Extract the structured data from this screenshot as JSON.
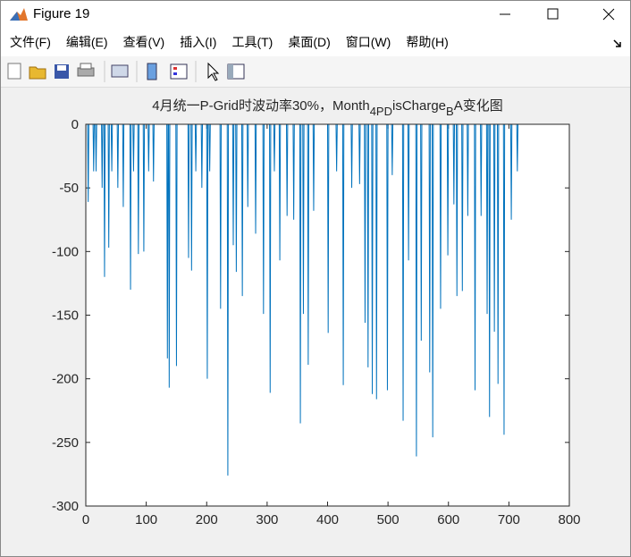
{
  "window": {
    "title": "Figure 19"
  },
  "menu": [
    "文件(F)",
    "编辑(E)",
    "查看(V)",
    "插入(I)",
    "工具(T)",
    "桌面(D)",
    "窗口(W)",
    "帮助(H)"
  ],
  "chart_data": {
    "type": "line",
    "title": [
      "4月统一P-Grid时波动率30%，Month",
      "4PD",
      "isCharge",
      "B",
      "A变化图"
    ],
    "xlim": [
      0,
      800
    ],
    "xticks": [
      0,
      100,
      200,
      300,
      400,
      500,
      600,
      700,
      800
    ],
    "ylim": [
      -300,
      0
    ],
    "yticks": [
      0,
      -50,
      -100,
      -150,
      -200,
      -250,
      -300
    ],
    "series": [
      {
        "color": "#0072bd",
        "x": [
          1,
          3,
          4,
          5,
          12,
          13,
          14,
          16,
          17,
          18,
          26,
          27,
          28,
          30,
          31,
          32,
          37,
          38,
          39,
          42,
          43,
          44,
          52,
          53,
          54,
          61,
          62,
          63,
          73,
          74,
          75,
          78,
          79,
          80,
          86,
          87,
          88,
          95,
          96,
          97,
          103,
          104,
          105,
          111,
          112,
          113,
          134,
          135,
          136,
          137,
          138,
          139,
          149,
          150,
          151,
          169,
          170,
          171,
          174,
          175,
          176,
          181,
          182,
          183,
          191,
          192,
          193,
          200,
          201,
          202,
          204,
          205,
          206,
          222,
          223,
          224,
          234,
          235,
          236,
          243,
          244,
          245,
          248,
          249,
          250,
          258,
          259,
          260,
          267,
          268,
          269,
          280,
          281,
          282,
          293,
          294,
          295,
          304,
          305,
          306,
          311,
          312,
          313,
          320,
          321,
          322,
          332,
          333,
          334,
          343,
          344,
          345,
          354,
          355,
          356,
          359,
          360,
          361,
          367,
          368,
          369,
          376,
          377,
          378,
          400,
          401,
          402,
          414,
          415,
          416,
          425,
          426,
          427,
          439,
          440,
          441,
          452,
          453,
          454,
          461,
          462,
          463,
          466,
          467,
          468,
          473,
          474,
          475,
          480,
          481,
          482,
          498,
          499,
          500,
          506,
          507,
          508,
          524,
          525,
          526,
          533,
          534,
          535,
          546,
          547,
          548,
          554,
          555,
          556,
          568,
          569,
          570,
          573,
          574,
          575,
          586,
          587,
          588,
          598,
          599,
          600,
          608,
          609,
          610,
          613,
          614,
          615,
          622,
          623,
          624,
          631,
          632,
          633,
          643,
          644,
          645,
          653,
          654,
          655,
          663,
          664,
          665,
          667,
          668,
          669,
          675,
          676,
          677,
          681,
          682,
          683,
          691,
          692,
          693,
          703,
          704,
          705,
          713,
          714,
          715,
          720
        ],
        "values": [
          0,
          0,
          -61,
          0,
          0,
          -37,
          0,
          0,
          -37,
          0,
          0,
          -50,
          0,
          0,
          -120,
          0,
          0,
          -97,
          0,
          0,
          -37,
          0,
          0,
          -50,
          0,
          0,
          -65,
          0,
          0,
          -130,
          0,
          0,
          -37,
          0,
          0,
          -102,
          0,
          0,
          -100,
          0,
          0,
          -37,
          0,
          0,
          -45,
          0,
          0,
          -184,
          0,
          0,
          -207,
          0,
          0,
          -190,
          0,
          0,
          -105,
          0,
          0,
          -115,
          0,
          0,
          -37,
          0,
          0,
          -50,
          0,
          0,
          -200,
          0,
          0,
          -37,
          0,
          0,
          -145,
          0,
          0,
          -276,
          0,
          0,
          -95,
          0,
          0,
          -116,
          0,
          0,
          -135,
          0,
          0,
          -65,
          0,
          0,
          -86,
          0,
          0,
          -149,
          0,
          0,
          -211,
          0,
          0,
          -37,
          0,
          0,
          -107,
          0,
          0,
          -72,
          0,
          0,
          -75,
          0,
          0,
          -235,
          0,
          0,
          -149,
          0,
          0,
          -189,
          0,
          0,
          -68,
          0,
          0,
          -164,
          0,
          0,
          -37,
          0,
          0,
          -205,
          0,
          0,
          -50,
          0,
          0,
          -47,
          0,
          0,
          -156,
          0,
          0,
          -191,
          0,
          0,
          -212,
          0,
          0,
          -216,
          0,
          0,
          -209,
          0,
          0,
          -40,
          0,
          0,
          -233,
          0,
          0,
          -107,
          0,
          0,
          -261,
          0,
          0,
          -170,
          0,
          0,
          -195,
          0,
          0,
          -246,
          0,
          0,
          -145,
          0,
          0,
          -103,
          0,
          0,
          -63,
          0,
          0,
          -135,
          0,
          0,
          -131,
          0,
          0,
          -72,
          0,
          0,
          -209,
          0,
          0,
          -72,
          0,
          0,
          -149,
          0,
          0,
          -230,
          0,
          0,
          -163,
          0,
          0,
          -204,
          0,
          0,
          -244,
          0,
          0,
          -75,
          0,
          0,
          -37,
          0,
          0
        ]
      }
    ]
  }
}
